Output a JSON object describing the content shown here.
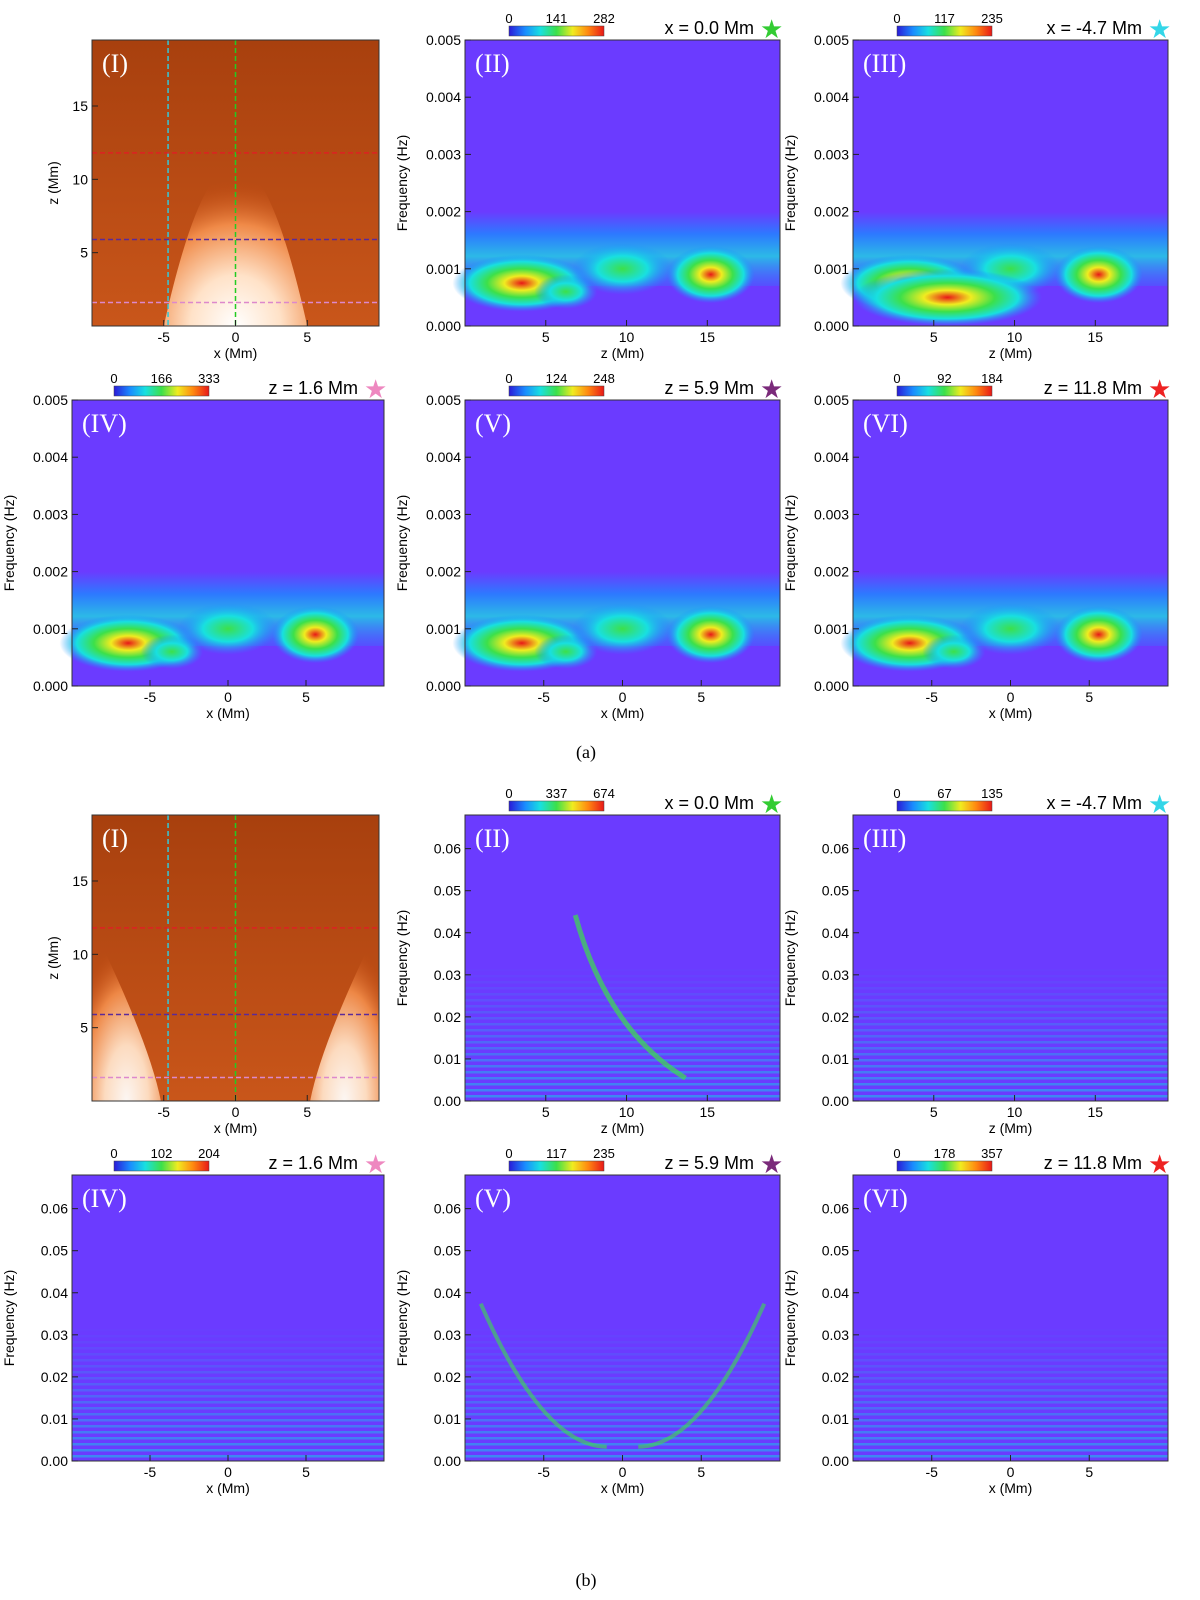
{
  "figure": {
    "parts": [
      {
        "label": "(a)",
        "panels": [
          {
            "id": "I",
            "roman": "(I)",
            "kind": "map",
            "xlabel": "x (Mm)",
            "ylabel": "z (Mm)",
            "xticks": [
              "-5",
              "0",
              "5"
            ],
            "yticks": [
              "5",
              "10",
              "15"
            ],
            "arches": 1
          },
          {
            "id": "II",
            "roman": "(II)",
            "kind": "spectrum",
            "xlabel": "z (Mm)",
            "ylabel": "Frequency (Hz)",
            "xticks": [
              "5",
              "10",
              "15"
            ],
            "yticks": [
              "0.000",
              "0.001",
              "0.002",
              "0.003",
              "0.004",
              "0.005"
            ],
            "cbar": [
              "0",
              "141",
              "282"
            ],
            "title": "x = 0.0 Mm",
            "star_color": "#33cc33"
          },
          {
            "id": "III",
            "roman": "(III)",
            "kind": "spectrum",
            "xlabel": "z (Mm)",
            "ylabel": "Frequency (Hz)",
            "xticks": [
              "5",
              "10",
              "15"
            ],
            "yticks": [
              "0.000",
              "0.001",
              "0.002",
              "0.003",
              "0.004",
              "0.005"
            ],
            "cbar": [
              "0",
              "117",
              "235"
            ],
            "title": "x = -4.7 Mm",
            "star_color": "#33d6e8"
          },
          {
            "id": "IV",
            "roman": "(IV)",
            "kind": "spectrum",
            "xlabel": "x (Mm)",
            "ylabel": "Frequency (Hz)",
            "xticks": [
              "-5",
              "0",
              "5"
            ],
            "yticks": [
              "0.000",
              "0.001",
              "0.002",
              "0.003",
              "0.004",
              "0.005"
            ],
            "cbar": [
              "0",
              "166",
              "333"
            ],
            "title": "z = 1.6 Mm",
            "star_color": "#ee88c0"
          },
          {
            "id": "V",
            "roman": "(V)",
            "kind": "spectrum",
            "xlabel": "x (Mm)",
            "ylabel": "Frequency (Hz)",
            "xticks": [
              "-5",
              "0",
              "5"
            ],
            "yticks": [
              "0.000",
              "0.001",
              "0.002",
              "0.003",
              "0.004",
              "0.005"
            ],
            "cbar": [
              "0",
              "124",
              "248"
            ],
            "title": "z = 5.9 Mm",
            "star_color": "#7a2a7a"
          },
          {
            "id": "VI",
            "roman": "(VI)",
            "kind": "spectrum",
            "xlabel": "x (Mm)",
            "ylabel": "Frequency (Hz)",
            "xticks": [
              "-5",
              "0",
              "5"
            ],
            "yticks": [
              "0.000",
              "0.001",
              "0.002",
              "0.003",
              "0.004",
              "0.005"
            ],
            "cbar": [
              "0",
              "92",
              "184"
            ],
            "title": "z = 11.8 Mm",
            "star_color": "#ee2222"
          }
        ]
      },
      {
        "label": "(b)",
        "panels": [
          {
            "id": "I",
            "roman": "(I)",
            "kind": "map",
            "xlabel": "x (Mm)",
            "ylabel": "z (Mm)",
            "xticks": [
              "-5",
              "0",
              "5"
            ],
            "yticks": [
              "5",
              "10",
              "15"
            ],
            "arches": 2
          },
          {
            "id": "II",
            "roman": "(II)",
            "kind": "spectrum",
            "xlabel": "z (Mm)",
            "ylabel": "Frequency (Hz)",
            "xticks": [
              "5",
              "10",
              "15"
            ],
            "yticks": [
              "0.00",
              "0.01",
              "0.02",
              "0.03",
              "0.04",
              "0.05",
              "0.06"
            ],
            "cbar": [
              "0",
              "337",
              "674"
            ],
            "title": "x = 0.0 Mm",
            "star_color": "#33cc33"
          },
          {
            "id": "III",
            "roman": "(III)",
            "kind": "spectrum",
            "xlabel": "z (Mm)",
            "ylabel": "Frequency (Hz)",
            "xticks": [
              "5",
              "10",
              "15"
            ],
            "yticks": [
              "0.00",
              "0.01",
              "0.02",
              "0.03",
              "0.04",
              "0.05",
              "0.06"
            ],
            "cbar": [
              "0",
              "67",
              "135"
            ],
            "title": "x = -4.7 Mm",
            "star_color": "#33d6e8"
          },
          {
            "id": "IV",
            "roman": "(IV)",
            "kind": "spectrum",
            "xlabel": "x (Mm)",
            "ylabel": "Frequency (Hz)",
            "xticks": [
              "-5",
              "0",
              "5"
            ],
            "yticks": [
              "0.00",
              "0.01",
              "0.02",
              "0.03",
              "0.04",
              "0.05",
              "0.06"
            ],
            "cbar": [
              "0",
              "102",
              "204"
            ],
            "title": "z = 1.6 Mm",
            "star_color": "#ee88c0"
          },
          {
            "id": "V",
            "roman": "(V)",
            "kind": "spectrum",
            "xlabel": "x (Mm)",
            "ylabel": "Frequency (Hz)",
            "xticks": [
              "-5",
              "0",
              "5"
            ],
            "yticks": [
              "0.00",
              "0.01",
              "0.02",
              "0.03",
              "0.04",
              "0.05",
              "0.06"
            ],
            "cbar": [
              "0",
              "117",
              "235"
            ],
            "title": "z = 5.9 Mm",
            "star_color": "#7a2a7a"
          },
          {
            "id": "VI",
            "roman": "(VI)",
            "kind": "spectrum",
            "xlabel": "x (Mm)",
            "ylabel": "Frequency (Hz)",
            "xticks": [
              "-5",
              "0",
              "5"
            ],
            "yticks": [
              "0.00",
              "0.01",
              "0.02",
              "0.03",
              "0.04",
              "0.05",
              "0.06"
            ],
            "cbar": [
              "0",
              "178",
              "357"
            ],
            "title": "z = 11.8 Mm",
            "star_color": "#ee2222"
          }
        ]
      }
    ],
    "map_guides": [
      {
        "name": "x-guide-cyan",
        "color": "#33c8d8"
      },
      {
        "name": "x-guide-green",
        "color": "#22cc22"
      },
      {
        "name": "z-guide-red",
        "color": "#dd2222"
      },
      {
        "name": "z-guide-purple",
        "color": "#5a2a9a"
      },
      {
        "name": "z-guide-pink",
        "color": "#dd88cc"
      }
    ],
    "colors": {
      "spectrum_bg": "#6b3bff",
      "map_bg": "#c24a10",
      "colorbar": [
        "#2a1ad8",
        "#1a8cff",
        "#18e0e0",
        "#3ce04a",
        "#f0ec20",
        "#ff8a10",
        "#e81818"
      ]
    }
  }
}
